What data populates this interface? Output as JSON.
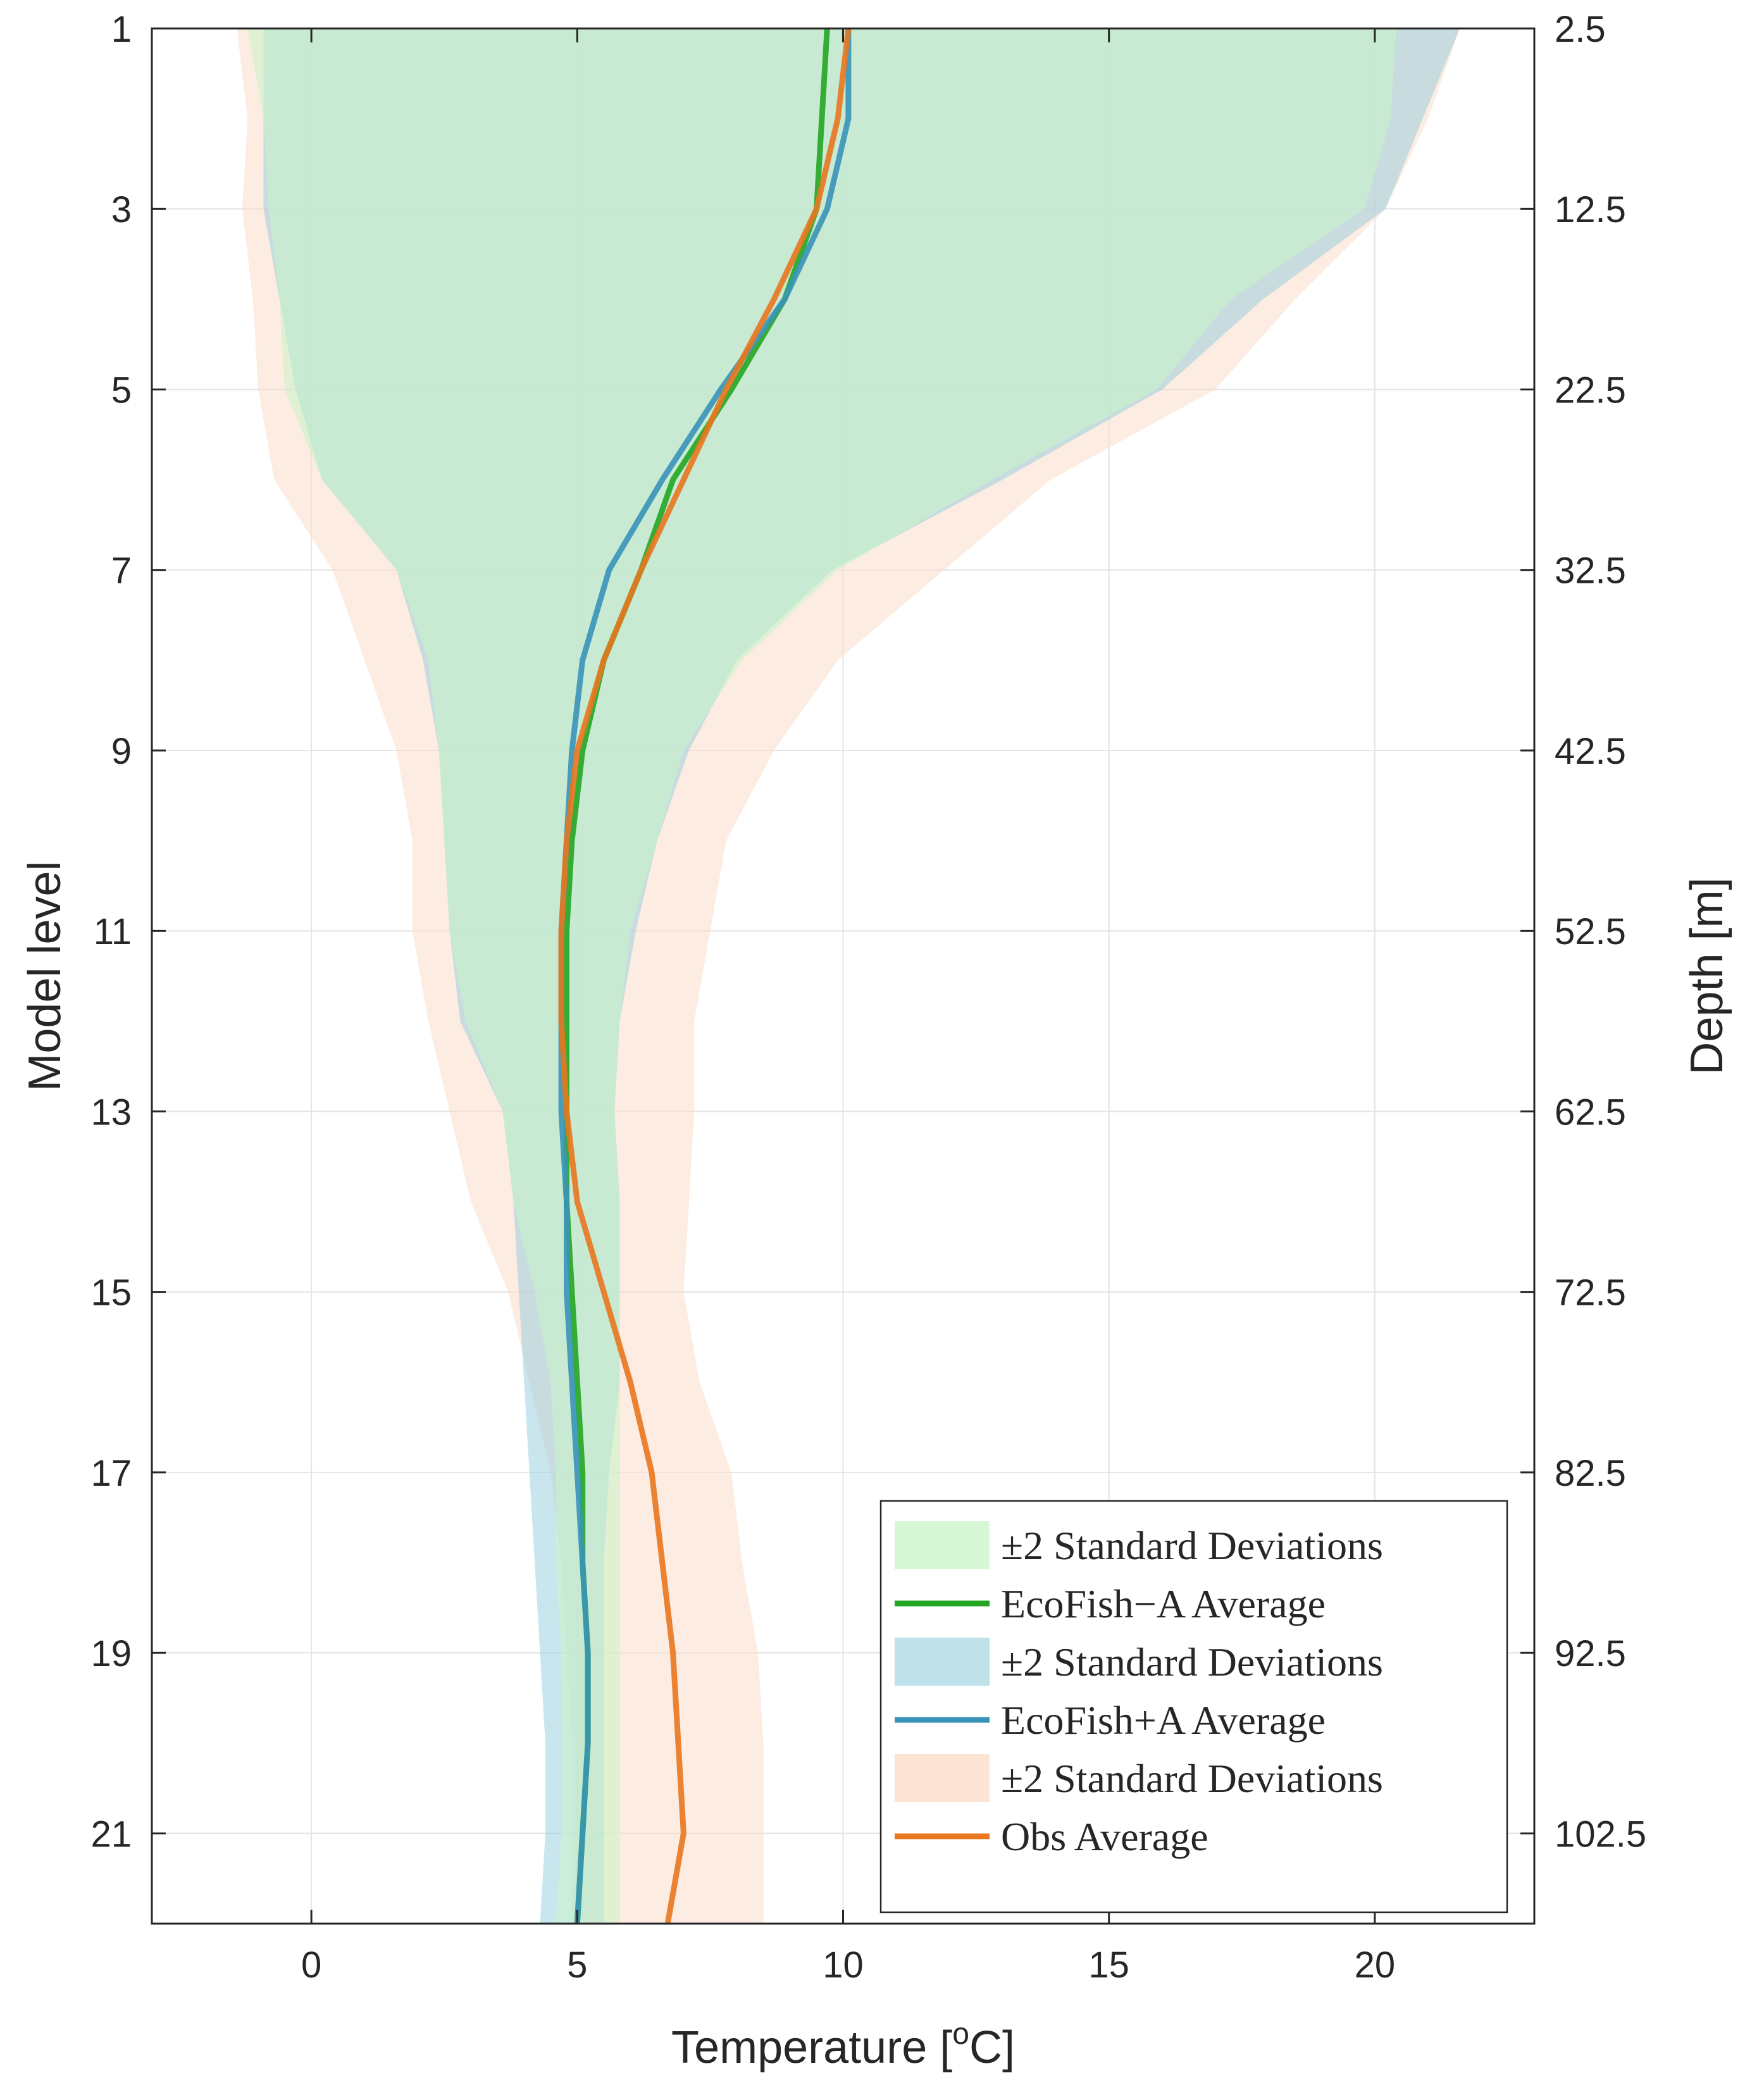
{
  "chart_data": {
    "type": "area",
    "title": "",
    "xlabel": "Temperature [",
    "xlabel_sup": "o",
    "xlabel_suffix": "C]",
    "ylabel_left": "Model level",
    "ylabel_right": "Depth [m]",
    "xlim": [
      -3,
      23
    ],
    "ylim": [
      22,
      1
    ],
    "xticks": [
      0,
      5,
      10,
      15,
      20
    ],
    "xtick_labels": [
      "0",
      "5",
      "10",
      "15",
      "20"
    ],
    "yticks": [
      1,
      3,
      5,
      7,
      9,
      11,
      13,
      15,
      17,
      19,
      21
    ],
    "ytick_labels": [
      "1",
      "3",
      "5",
      "7",
      "9",
      "11",
      "13",
      "15",
      "17",
      "19",
      "21"
    ],
    "right_ytick_labels": [
      "2.5",
      "12.5",
      "22.5",
      "32.5",
      "42.5",
      "52.5",
      "62.5",
      "72.5",
      "82.5",
      "92.5",
      "102.5"
    ],
    "grid": true,
    "legend_position": "bottom-right",
    "levels": [
      1,
      2,
      3,
      4,
      5,
      6,
      7,
      8,
      9,
      10,
      11,
      12,
      13,
      14,
      15,
      16,
      17,
      18,
      19,
      20,
      21,
      22
    ],
    "series": [
      {
        "name": "EcoFish−A",
        "color": "#23a623",
        "band_color": "#c8f5c8",
        "band_opacity": 0.55,
        "band_label": "±2 Standard Deviations",
        "mean_label": "EcoFish−A Average",
        "mean": [
          9.7,
          9.6,
          9.5,
          8.9,
          7.9,
          6.8,
          6.2,
          5.5,
          5.1,
          4.9,
          4.8,
          4.8,
          4.8,
          4.8,
          4.9,
          5.0,
          5.1,
          5.1,
          5.2,
          5.2,
          5.1,
          5.0
        ],
        "lower": [
          -1.2,
          -0.9,
          -0.8,
          -0.6,
          -0.5,
          0.2,
          1.6,
          2.2,
          2.4,
          2.5,
          2.6,
          2.9,
          3.6,
          3.8,
          4.2,
          4.5,
          4.6,
          4.6,
          4.7,
          4.7,
          4.7,
          4.6
        ],
        "upper": [
          20.4,
          20.3,
          19.8,
          17.3,
          15.9,
          12.8,
          9.9,
          8.1,
          7.0,
          6.5,
          6.0,
          5.8,
          5.7,
          5.8,
          5.8,
          5.8,
          5.8,
          5.8,
          5.8,
          5.8,
          5.8,
          5.8
        ]
      },
      {
        "name": "EcoFish+A",
        "color": "#3a93b8",
        "band_color": "#9dcfe0",
        "band_opacity": 0.55,
        "band_label": "±2 Standard Deviations",
        "mean_label": "EcoFish+A Average",
        "mean": [
          10.1,
          10.1,
          9.7,
          8.9,
          7.7,
          6.6,
          5.6,
          5.1,
          4.9,
          4.8,
          4.7,
          4.7,
          4.7,
          4.8,
          4.8,
          4.9,
          5.0,
          5.1,
          5.2,
          5.2,
          5.1,
          5.0
        ],
        "lower": [
          -0.9,
          -0.9,
          -0.9,
          -0.6,
          -0.3,
          0.2,
          1.6,
          2.1,
          2.4,
          2.5,
          2.6,
          2.8,
          3.6,
          3.8,
          3.9,
          4.0,
          4.1,
          4.2,
          4.3,
          4.4,
          4.4,
          4.3
        ],
        "upper": [
          21.6,
          20.9,
          20.2,
          17.9,
          16.0,
          13.0,
          9.8,
          8.0,
          7.1,
          6.5,
          6.1,
          5.8,
          5.7,
          5.8,
          5.8,
          5.8,
          5.6,
          5.5,
          5.5,
          5.5,
          5.5,
          5.5
        ]
      },
      {
        "name": "Obs",
        "color": "#e8771f",
        "band_color": "#f9ddc8",
        "band_opacity": 0.55,
        "band_label": "±2 Standard Deviations",
        "mean_label": "Obs Average",
        "mean": [
          10.1,
          9.9,
          9.5,
          8.7,
          7.8,
          7.0,
          6.2,
          5.5,
          5.0,
          4.8,
          4.7,
          4.7,
          4.8,
          5.0,
          5.5,
          6.0,
          6.4,
          6.6,
          6.8,
          6.9,
          7.0,
          6.7
        ],
        "lower": [
          -1.4,
          -1.2,
          -1.3,
          -1.1,
          -1.0,
          -0.7,
          0.4,
          1.0,
          1.6,
          1.9,
          1.9,
          2.2,
          2.6,
          3.0,
          3.7,
          4.1,
          4.5,
          4.7,
          4.8,
          4.9,
          4.9,
          4.9
        ],
        "upper": [
          21.6,
          21.0,
          20.2,
          18.5,
          17.0,
          13.9,
          11.9,
          9.9,
          8.7,
          7.8,
          7.5,
          7.2,
          7.2,
          7.1,
          7.0,
          7.3,
          7.9,
          8.1,
          8.4,
          8.5,
          8.5,
          8.5
        ]
      }
    ],
    "legend_entries": [
      {
        "kind": "band",
        "series": 0,
        "label": "±2 Standard Deviations",
        "color": "#d6f7d6"
      },
      {
        "kind": "line",
        "series": 0,
        "label": "EcoFish−A Average",
        "color": "#23a623"
      },
      {
        "kind": "band",
        "series": 1,
        "label": "±2 Standard Deviations",
        "color": "#bfe1ea"
      },
      {
        "kind": "line",
        "series": 1,
        "label": "EcoFish+A Average",
        "color": "#3a93b8"
      },
      {
        "kind": "band",
        "series": 2,
        "label": "±2 Standard Deviations",
        "color": "#fbe4d4"
      },
      {
        "kind": "line",
        "series": 2,
        "label": "Obs Average",
        "color": "#e8771f"
      }
    ]
  }
}
